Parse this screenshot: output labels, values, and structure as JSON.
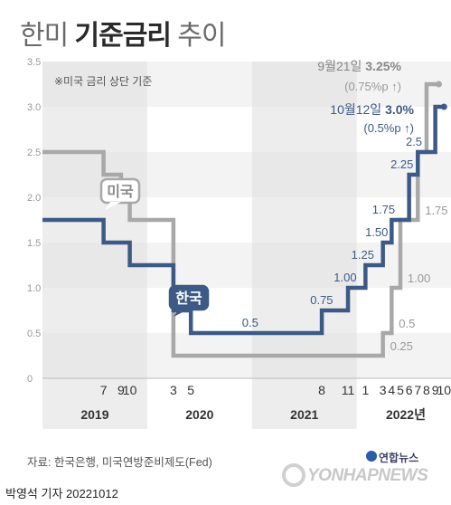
{
  "title": {
    "light1": "한미 ",
    "bold": "기준금리",
    "light2": " 추이"
  },
  "source": "자료: 한국은행, 미국연방준비제도(Fed)",
  "credit": "박영석 기자 20221012",
  "brand": {
    "small": "연합뉴스",
    "large": "YONHAPNEWS"
  },
  "chart_data": {
    "type": "line",
    "step": true,
    "title": "한미 기준금리 추이",
    "note": "※미국 금리 상단 기준",
    "ylim": [
      0,
      3.5
    ],
    "yticks": [
      "0",
      "0.5",
      "1.0",
      "1.5",
      "2.0",
      "2.5",
      "3.0",
      "3.5"
    ],
    "x_month_labels": [
      {
        "label": "7",
        "t": 7
      },
      {
        "label": "9",
        "t": 9
      },
      {
        "label": "10",
        "t": 10
      },
      {
        "label": "3",
        "t": 15
      },
      {
        "label": "5",
        "t": 17
      },
      {
        "label": "8",
        "t": 32
      },
      {
        "label": "11",
        "t": 35
      },
      {
        "label": "1",
        "t": 37
      },
      {
        "label": "3",
        "t": 39
      },
      {
        "label": "4",
        "t": 40
      },
      {
        "label": "5",
        "t": 41
      },
      {
        "label": "6",
        "t": 42
      },
      {
        "label": "7",
        "t": 43
      },
      {
        "label": "8",
        "t": 44
      },
      {
        "label": "9",
        "t": 45
      },
      {
        "label": "10",
        "t": 46
      }
    ],
    "years": [
      {
        "label": "2019",
        "from": 1,
        "to": 12,
        "shaded": true
      },
      {
        "label": "2020",
        "from": 13,
        "to": 24,
        "shaded": false
      },
      {
        "label": "2021",
        "from": 25,
        "to": 36,
        "shaded": true
      },
      {
        "label": "2022년",
        "from": 37,
        "to": 46,
        "shaded": false
      }
    ],
    "series": [
      {
        "name": "미국",
        "color": "#a8a8a8",
        "points": [
          [
            0,
            2.5
          ],
          [
            7,
            2.25
          ],
          [
            9,
            2.0
          ],
          [
            10,
            1.75
          ],
          [
            15,
            0.25
          ],
          [
            39,
            0.5
          ],
          [
            40,
            1.0
          ],
          [
            41,
            1.75
          ],
          [
            43,
            2.5
          ],
          [
            44,
            3.25
          ]
        ],
        "labels": [
          {
            "text": "0.25",
            "t": 39.2,
            "v": 0.25
          },
          {
            "text": "0.5",
            "t": 40.2,
            "v": 0.5
          },
          {
            "text": "1.00",
            "t": 41.2,
            "v": 1.0
          },
          {
            "text": "1.75",
            "t": 43.2,
            "v": 1.75
          }
        ]
      },
      {
        "name": "한국",
        "color": "#3c5a85",
        "points": [
          [
            0,
            1.75
          ],
          [
            7,
            1.5
          ],
          [
            10,
            1.25
          ],
          [
            15,
            0.75
          ],
          [
            17,
            0.5
          ],
          [
            32,
            0.75
          ],
          [
            35,
            1.0
          ],
          [
            37,
            1.25
          ],
          [
            39,
            1.5
          ],
          [
            40,
            1.75
          ],
          [
            42,
            2.25
          ],
          [
            43,
            2.5
          ],
          [
            45,
            3.0
          ]
        ],
        "labels": [
          {
            "text": "0.5",
            "t": 24,
            "v": 0.5
          },
          {
            "text": "0.75",
            "t": 33.5,
            "v": 0.75
          },
          {
            "text": "1.00",
            "t": 36.2,
            "v": 1.0
          },
          {
            "text": "1.25",
            "t": 38.2,
            "v": 1.25
          },
          {
            "text": "1.50",
            "t": 39.8,
            "v": 1.5
          },
          {
            "text": "1.75",
            "t": 40.6,
            "v": 1.75
          },
          {
            "text": "2.25",
            "t": 42.7,
            "v": 2.25
          },
          {
            "text": "2.5",
            "t": 43.7,
            "v": 2.5
          }
        ]
      }
    ],
    "callouts": [
      {
        "series": "미국",
        "date": "9월21일",
        "value": "3.25%",
        "change": "(0.75%p ↑)"
      },
      {
        "series": "한국",
        "date": "10월12일",
        "value": "3.0%",
        "change": "(0.5%p ↑)"
      }
    ]
  }
}
